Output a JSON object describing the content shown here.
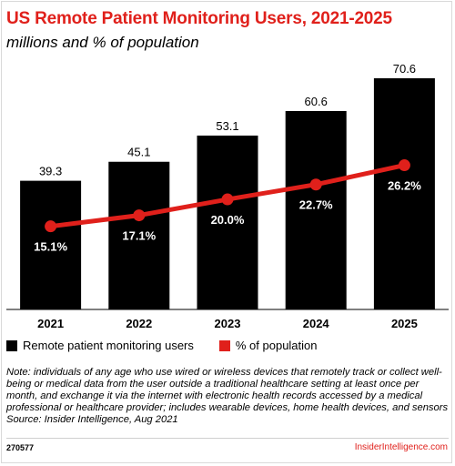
{
  "header": {
    "title": "US Remote Patient Monitoring Users, 2021-2025",
    "subtitle": "millions and % of population"
  },
  "legend": {
    "bar_label": "Remote patient monitoring users",
    "line_label": "% of population"
  },
  "note": {
    "text": "Note: individuals of any age who use wired or wireless devices that remotely track or collect well-being or medical data from the user outside a traditional healthcare setting at least once per month, and exchange it via the internet with electronic health records accessed by a medical professional or healthcare provider; includes wearable devices, home health devices, and sensors",
    "source": "Source: Insider Intelligence, Aug 2021"
  },
  "footer": {
    "chart_id": "270577",
    "brand": "InsiderIntelligence.com"
  },
  "colors": {
    "bar": "#000000",
    "line": "#e0201b",
    "title": "#e0201b"
  },
  "chart_data": {
    "type": "bar",
    "categories": [
      "2021",
      "2022",
      "2023",
      "2024",
      "2025"
    ],
    "series": [
      {
        "name": "Remote patient monitoring users",
        "type": "bar",
        "values": [
          39.3,
          45.1,
          53.1,
          60.6,
          70.6
        ],
        "labels": [
          "39.3",
          "45.1",
          "53.1",
          "60.6",
          "70.6"
        ]
      },
      {
        "name": "% of population",
        "type": "line",
        "values": [
          15.1,
          17.1,
          20.0,
          22.7,
          26.2
        ],
        "labels": [
          "15.1%",
          "17.1%",
          "20.0%",
          "22.7%",
          "26.2%"
        ]
      }
    ],
    "ylim": [
      0,
      80
    ],
    "y2lim": [
      0,
      100
    ],
    "grid": false,
    "legend_position": "bottom-left"
  }
}
